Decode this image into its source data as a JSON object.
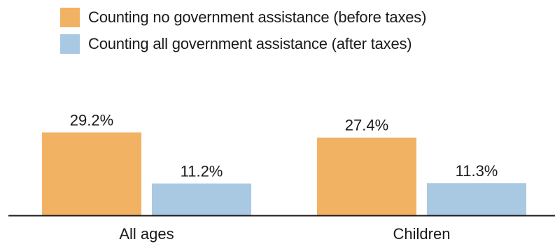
{
  "chart_data": {
    "type": "bar",
    "title": "",
    "xlabel": "",
    "ylabel": "",
    "categories": [
      "All ages",
      "Children"
    ],
    "series": [
      {
        "name": "Counting no government assistance (before taxes)",
        "values": [
          29.2,
          27.4
        ],
        "labels": [
          "29.2%",
          "27.4%"
        ],
        "color": "#F2B264"
      },
      {
        "name": "Counting all government assistance (after taxes)",
        "values": [
          11.2,
          11.3
        ],
        "labels": [
          "11.2%",
          "11.3%"
        ],
        "color": "#A9C9E3"
      }
    ],
    "ylim": [
      0,
      33
    ],
    "grid": false,
    "legend": "top-left"
  },
  "colors": {
    "axis": "#1a1a1a",
    "text": "#1a1a1a"
  }
}
